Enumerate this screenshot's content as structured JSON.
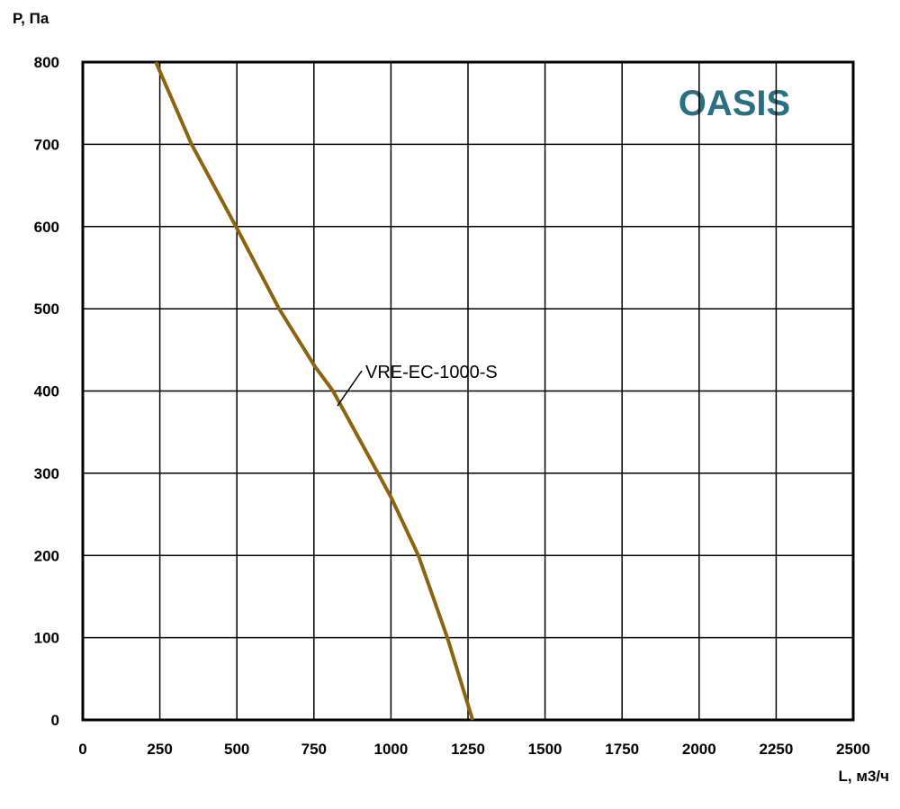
{
  "chart_data": {
    "type": "line",
    "y_label": "P, Па",
    "x_label": "L, м3/ч",
    "watermark": "OASIS",
    "x": [
      237,
      353,
      497,
      637,
      753,
      812,
      958,
      1000,
      1089,
      1183,
      1265
    ],
    "series": [
      {
        "name": "VRE-EC-1000-S",
        "color": "#8a6410",
        "values": [
          800,
          700,
          600,
          500,
          430,
          400,
          300,
          271,
          200,
          100,
          0
        ]
      }
    ],
    "xlim": [
      0,
      2500
    ],
    "xticks": [
      0,
      250,
      500,
      750,
      1000,
      1250,
      1500,
      1750,
      2000,
      2250,
      2500
    ],
    "ylim": [
      0,
      800
    ],
    "yticks": [
      0,
      100,
      200,
      300,
      400,
      500,
      600,
      700,
      800
    ],
    "grid": true
  }
}
